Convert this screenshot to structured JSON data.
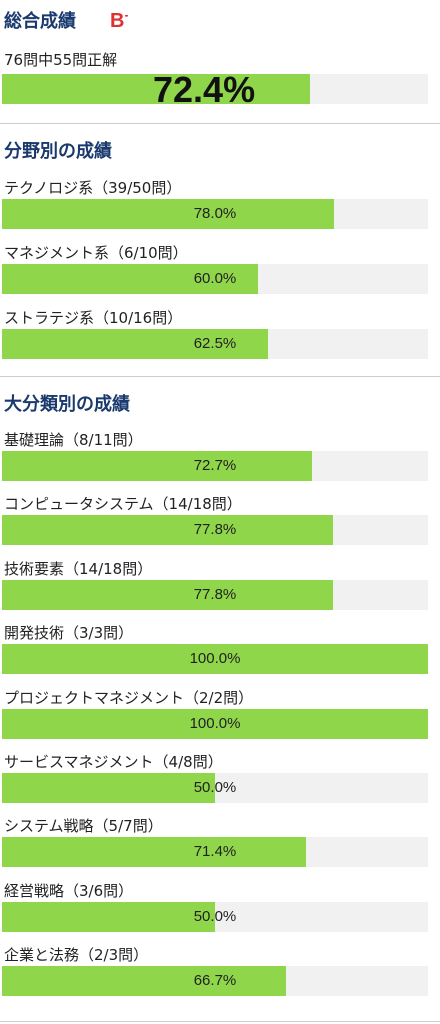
{
  "overall": {
    "title": "総合成績",
    "grade": "B",
    "grade_suffix": "-",
    "summary": "76問中55問正解",
    "percent_label": "72.4%",
    "percent": 72.4
  },
  "fields": {
    "title": "分野別の成績",
    "items": [
      {
        "label": "テクノロジ系（39/50問）",
        "percent_label": "78.0%",
        "percent": 78.0
      },
      {
        "label": "マネジメント系（6/10問）",
        "percent_label": "60.0%",
        "percent": 60.0
      },
      {
        "label": "ストラテジ系（10/16問）",
        "percent_label": "62.5%",
        "percent": 62.5
      }
    ]
  },
  "categories": {
    "title": "大分類別の成績",
    "items": [
      {
        "label": "基礎理論（8/11問）",
        "percent_label": "72.7%",
        "percent": 72.7
      },
      {
        "label": "コンピュータシステム（14/18問）",
        "percent_label": "77.8%",
        "percent": 77.8
      },
      {
        "label": "技術要素（14/18問）",
        "percent_label": "77.8%",
        "percent": 77.8
      },
      {
        "label": "開発技術（3/3問）",
        "percent_label": "100.0%",
        "percent": 100.0
      },
      {
        "label": "プロジェクトマネジメント（2/2問）",
        "percent_label": "100.0%",
        "percent": 100.0
      },
      {
        "label": "サービスマネジメント（4/8問）",
        "percent_label": "50.0%",
        "percent": 50.0
      },
      {
        "label": "システム戦略（5/7問）",
        "percent_label": "71.4%",
        "percent": 71.4
      },
      {
        "label": "経営戦略（3/6問）",
        "percent_label": "50.0%",
        "percent": 50.0
      },
      {
        "label": "企業と法務（2/3問）",
        "percent_label": "66.7%",
        "percent": 66.7
      }
    ]
  },
  "colors": {
    "bar_fill": "#8fd64a",
    "bar_track": "#f1f1f1",
    "heading": "#1a3a6e",
    "grade": "#e03131"
  }
}
